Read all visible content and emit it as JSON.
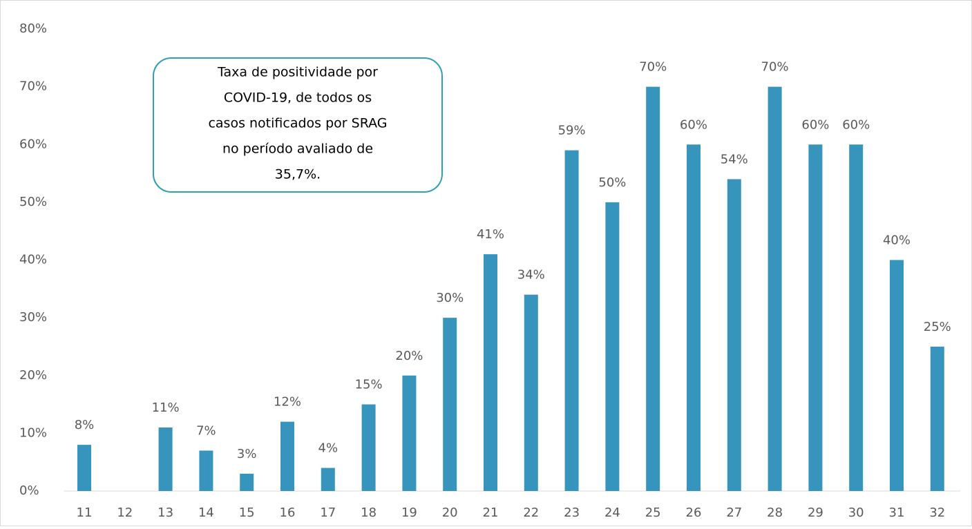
{
  "chart_data": {
    "type": "bar",
    "categories": [
      "11",
      "12",
      "13",
      "14",
      "15",
      "16",
      "17",
      "18",
      "19",
      "20",
      "21",
      "22",
      "23",
      "24",
      "25",
      "26",
      "27",
      "28",
      "29",
      "30",
      "31",
      "32"
    ],
    "values": [
      8,
      null,
      11,
      7,
      3,
      12,
      4,
      15,
      20,
      30,
      41,
      34,
      59,
      50,
      70,
      60,
      54,
      70,
      60,
      60,
      40,
      25
    ],
    "value_labels": [
      "8%",
      null,
      "11%",
      "7%",
      "3%",
      "12%",
      "4%",
      "15%",
      "20%",
      "30%",
      "41%",
      "34%",
      "59%",
      "50%",
      "70%",
      "60%",
      "54%",
      "70%",
      "60%",
      "60%",
      "40%",
      "25%"
    ],
    "color": "#3795bd",
    "ylim": [
      0,
      80
    ],
    "yticks": [
      {
        "value": 0,
        "label": "0%"
      },
      {
        "value": 10,
        "label": "10%"
      },
      {
        "value": 20,
        "label": "20%"
      },
      {
        "value": 30,
        "label": "30%"
      },
      {
        "value": 40,
        "label": "40%"
      },
      {
        "value": 50,
        "label": "50%"
      },
      {
        "value": 60,
        "label": "60%"
      },
      {
        "value": 70,
        "label": "70%"
      },
      {
        "value": 80,
        "label": "80%"
      }
    ],
    "grid": false,
    "annotation": [
      "Taxa de positividade por",
      "COVID-19, de todos os",
      "casos notificados por SRAG",
      "no período avaliado de",
      "35,7%."
    ]
  }
}
